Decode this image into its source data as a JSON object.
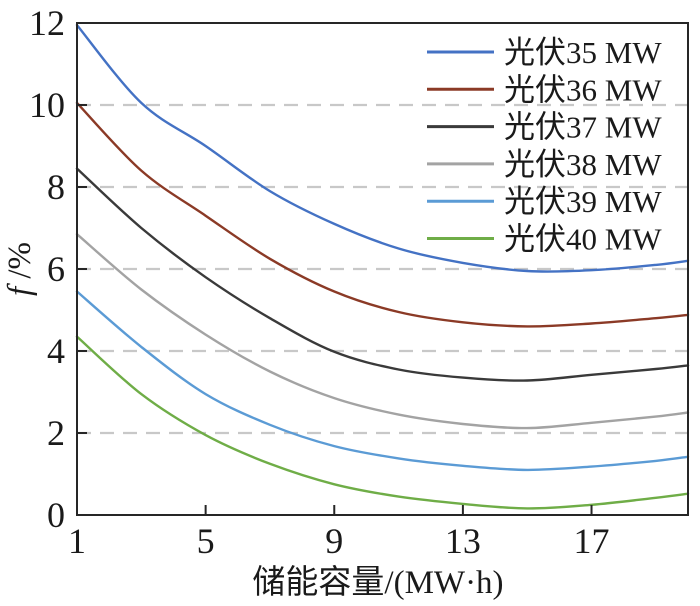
{
  "chart_data": {
    "type": "line",
    "title": "",
    "xlabel": "储能容量/(MW·h)",
    "ylabel_italic": "f",
    "ylabel_rest": " /%",
    "xlim": [
      1,
      20
    ],
    "ylim": [
      0,
      12
    ],
    "x_ticks": [
      1,
      5,
      9,
      13,
      17
    ],
    "y_ticks": [
      0,
      2,
      4,
      6,
      8,
      10,
      12
    ],
    "gridlines_y": [
      2,
      4,
      6,
      8,
      10
    ],
    "grid": "dashed-horizontal",
    "legend_position": "top-right",
    "x": [
      1,
      3,
      5,
      7,
      9,
      11,
      13,
      15,
      17,
      19,
      20
    ],
    "series": [
      {
        "name": "光伏35 MW",
        "color": "#4472c4",
        "values": [
          11.95,
          10.05,
          9.0,
          7.9,
          7.1,
          6.5,
          6.15,
          5.95,
          5.97,
          6.1,
          6.2
        ]
      },
      {
        "name": "光伏36 MW",
        "color": "#8b3a26",
        "values": [
          10.05,
          8.4,
          7.3,
          6.25,
          5.45,
          4.95,
          4.7,
          4.6,
          4.67,
          4.8,
          4.88
        ]
      },
      {
        "name": "光伏37 MW",
        "color": "#3a3a3a",
        "values": [
          8.45,
          7.0,
          5.8,
          4.8,
          3.98,
          3.55,
          3.35,
          3.28,
          3.42,
          3.56,
          3.65
        ]
      },
      {
        "name": "光伏38 MW",
        "color": "#a3a3a3",
        "values": [
          6.85,
          5.5,
          4.4,
          3.5,
          2.85,
          2.45,
          2.22,
          2.12,
          2.25,
          2.4,
          2.5
        ]
      },
      {
        "name": "光伏39 MW",
        "color": "#5b9bd5",
        "values": [
          5.45,
          4.1,
          2.95,
          2.2,
          1.68,
          1.38,
          1.2,
          1.1,
          1.18,
          1.32,
          1.42
        ]
      },
      {
        "name": "光伏40 MW",
        "color": "#6fad47",
        "values": [
          4.35,
          2.95,
          1.95,
          1.25,
          0.75,
          0.45,
          0.27,
          0.16,
          0.25,
          0.42,
          0.52
        ]
      }
    ]
  },
  "style": {
    "frame_color": "#262626",
    "grid_color": "#c8c8c8",
    "text_color": "#1a1a1a",
    "background": "#ffffff"
  }
}
